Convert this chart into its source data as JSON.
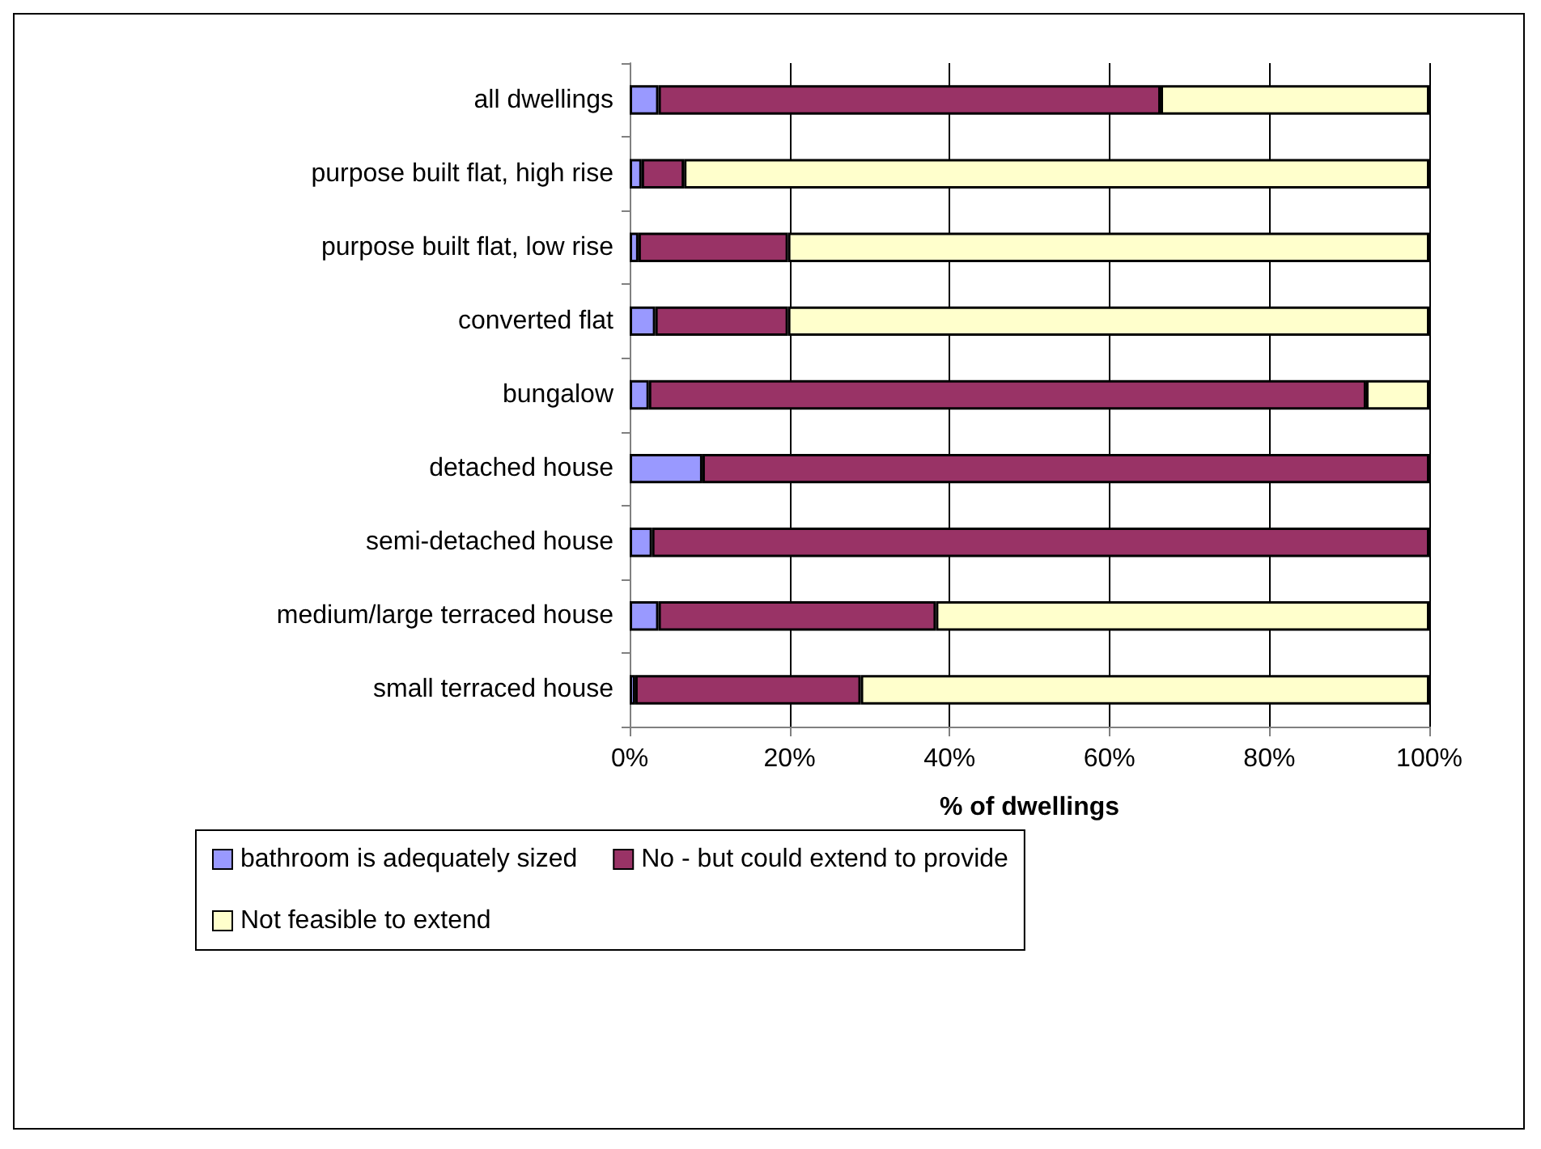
{
  "chart_data": {
    "type": "bar",
    "orientation": "horizontal",
    "stacked": true,
    "xlabel": "% of dwellings",
    "categories": [
      "all dwellings",
      "purpose built flat, high rise",
      "purpose built flat, low rise",
      "converted flat",
      "bungalow",
      "detached house",
      "semi-detached house",
      "medium/large terraced house",
      "small terraced house"
    ],
    "series": [
      {
        "name": "bathroom is adequately sized",
        "color": "#9999ff",
        "values": [
          3.6,
          1.5,
          1.1,
          3.2,
          2.4,
          9.1,
          2.8,
          3.6,
          0.7
        ]
      },
      {
        "name": "No - but could extend to provide",
        "color": "#993366",
        "values": [
          62.8,
          5.3,
          18.7,
          16.6,
          89.7,
          90.9,
          97.2,
          34.7,
          28.2
        ]
      },
      {
        "name": "Not feasible to extend",
        "color": "#ffffcc",
        "values": [
          33.6,
          93.2,
          80.2,
          80.2,
          7.9,
          0,
          0,
          61.7,
          71.1
        ]
      }
    ],
    "xlim": [
      0,
      100
    ],
    "xticks": [
      {
        "value": 0,
        "label": "0%"
      },
      {
        "value": 20,
        "label": "20%"
      },
      {
        "value": 40,
        "label": "40%"
      },
      {
        "value": 60,
        "label": "60%"
      },
      {
        "value": 80,
        "label": "80%"
      },
      {
        "value": 100,
        "label": "100%"
      }
    ],
    "grid": "x",
    "legend": "bottom"
  }
}
